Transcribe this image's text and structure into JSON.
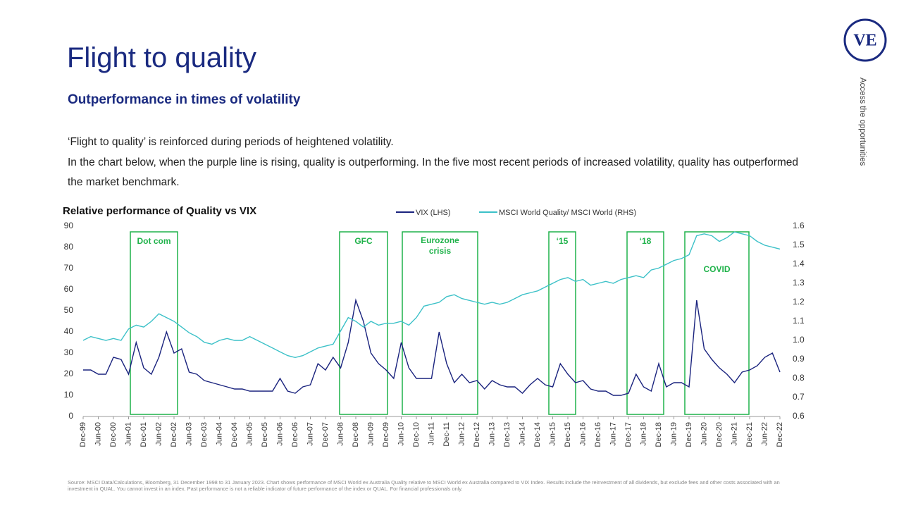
{
  "header": {
    "title": "Flight to quality",
    "subtitle": "Outperformance in times of volatility",
    "paragraphs": [
      "‘Flight to quality’ is reinforced during periods of heightened volatility.",
      "In the chart below, when the purple line is rising, quality is outperforming. In the five most recent periods of increased volatility, quality has outperformed the market benchmark."
    ]
  },
  "brand": {
    "logo": "VE",
    "tagline": "Access the opportunities"
  },
  "chart_data": {
    "type": "line",
    "title": "Relative performance of Quality vs VIX",
    "categories": [
      "Dec-99",
      null,
      "Jun-00",
      null,
      "Dec-00",
      null,
      "Jun-01",
      null,
      "Dec-01",
      null,
      "Jun-02",
      null,
      "Dec-02",
      null,
      "Jun-03",
      null,
      "Dec-03",
      null,
      "Jun-04",
      null,
      "Dec-04",
      null,
      "Jun-05",
      null,
      "Dec-05",
      null,
      "Jun-06",
      null,
      "Dec-06",
      null,
      "Jun-07",
      null,
      "Dec-07",
      null,
      "Jun-08",
      null,
      "Dec-08",
      null,
      "Jun-09",
      null,
      "Dec-09",
      null,
      "Jun-10",
      null,
      "Dec-10",
      null,
      "Jun-11",
      null,
      "Dec-11",
      null,
      "Jun-12",
      null,
      "Dec-12",
      null,
      "Jun-13",
      null,
      "Dec-13",
      null,
      "Jun-14",
      null,
      "Dec-14",
      null,
      "Jun-15",
      null,
      "Dec-15",
      null,
      "Jun-16",
      null,
      "Dec-16",
      null,
      "Jun-17",
      null,
      "Dec-17",
      null,
      "Jun-18",
      null,
      "Dec-18",
      null,
      "Jun-19",
      null,
      "Dec-19",
      null,
      "Jun-20",
      null,
      "Dec-20",
      null,
      "Jun-21",
      null,
      "Dec-21",
      null,
      "Jun-22",
      null,
      "Dec-22"
    ],
    "series": [
      {
        "name": "VIX (LHS)",
        "color": "#1a237e",
        "values": [
          22,
          22,
          20,
          20,
          28,
          27,
          20,
          35,
          23,
          20,
          28,
          40,
          30,
          32,
          21,
          20,
          17,
          16,
          15,
          14,
          13,
          13,
          12,
          12,
          12,
          12,
          18,
          12,
          11,
          14,
          15,
          25,
          22,
          28,
          23,
          35,
          55,
          45,
          30,
          25,
          22,
          18,
          35,
          23,
          18,
          18,
          18,
          40,
          25,
          16,
          20,
          16,
          17,
          13,
          17,
          15,
          14,
          14,
          11,
          15,
          18,
          15,
          14,
          25,
          20,
          16,
          17,
          13,
          12,
          12,
          10,
          10,
          11,
          20,
          14,
          12,
          25,
          14,
          16,
          16,
          14,
          55,
          32,
          27,
          23,
          20,
          16,
          21,
          22,
          24,
          28,
          30,
          21
        ]
      },
      {
        "name": "MSCI World Quality/ MSCI World (RHS)",
        "color": "#3cc1c8",
        "axis": "y2",
        "values": [
          1.0,
          1.02,
          1.01,
          1.0,
          1.01,
          1.0,
          1.06,
          1.08,
          1.07,
          1.1,
          1.14,
          1.12,
          1.1,
          1.07,
          1.04,
          1.02,
          0.99,
          0.98,
          1.0,
          1.01,
          1.0,
          1.0,
          1.02,
          1.0,
          0.98,
          0.96,
          0.94,
          0.92,
          0.91,
          0.92,
          0.94,
          0.96,
          0.97,
          0.98,
          1.05,
          1.12,
          1.1,
          1.07,
          1.1,
          1.08,
          1.09,
          1.09,
          1.1,
          1.08,
          1.12,
          1.18,
          1.19,
          1.2,
          1.23,
          1.24,
          1.22,
          1.21,
          1.2,
          1.19,
          1.2,
          1.19,
          1.2,
          1.22,
          1.24,
          1.25,
          1.26,
          1.28,
          1.3,
          1.32,
          1.33,
          1.31,
          1.32,
          1.29,
          1.3,
          1.31,
          1.3,
          1.32,
          1.33,
          1.34,
          1.33,
          1.37,
          1.38,
          1.4,
          1.42,
          1.43,
          1.45,
          1.55,
          1.56,
          1.55,
          1.52,
          1.54,
          1.57,
          1.56,
          1.55,
          1.52,
          1.5,
          1.49,
          1.48
        ]
      }
    ],
    "ylim": [
      0,
      90
    ],
    "yticks": [
      0,
      10,
      20,
      30,
      40,
      50,
      60,
      70,
      80,
      90
    ],
    "y2lim": [
      0.6,
      1.6
    ],
    "y2ticks": [
      0.6,
      0.7,
      0.8,
      0.9,
      {
        "value": 1,
        "label": "1.0"
      },
      1.1,
      1.2,
      1.3,
      1.4,
      1.5,
      1.6
    ],
    "annotations": [
      "Dot com",
      "GFC",
      "Eurozone crisis",
      "‘15",
      "‘18",
      "COVID"
    ],
    "box_color": "#1fb24a",
    "legend": "top-right"
  },
  "footer": {
    "source": "Source: MSCI Data/Calculations, Bloomberg, 31 December 1998 to 31 January 2023. Chart shows performance of MSCI World ex Australia Quality relative to MSCI World ex Australia compared to VIX Index. Results include the reinvestment of all dividends, but exclude fees and other costs associated with an investment in QUAL. You cannot invest in an index. Past performance is not a reliable indicator of future performance of the index or QUAL. For financial professionals only."
  }
}
